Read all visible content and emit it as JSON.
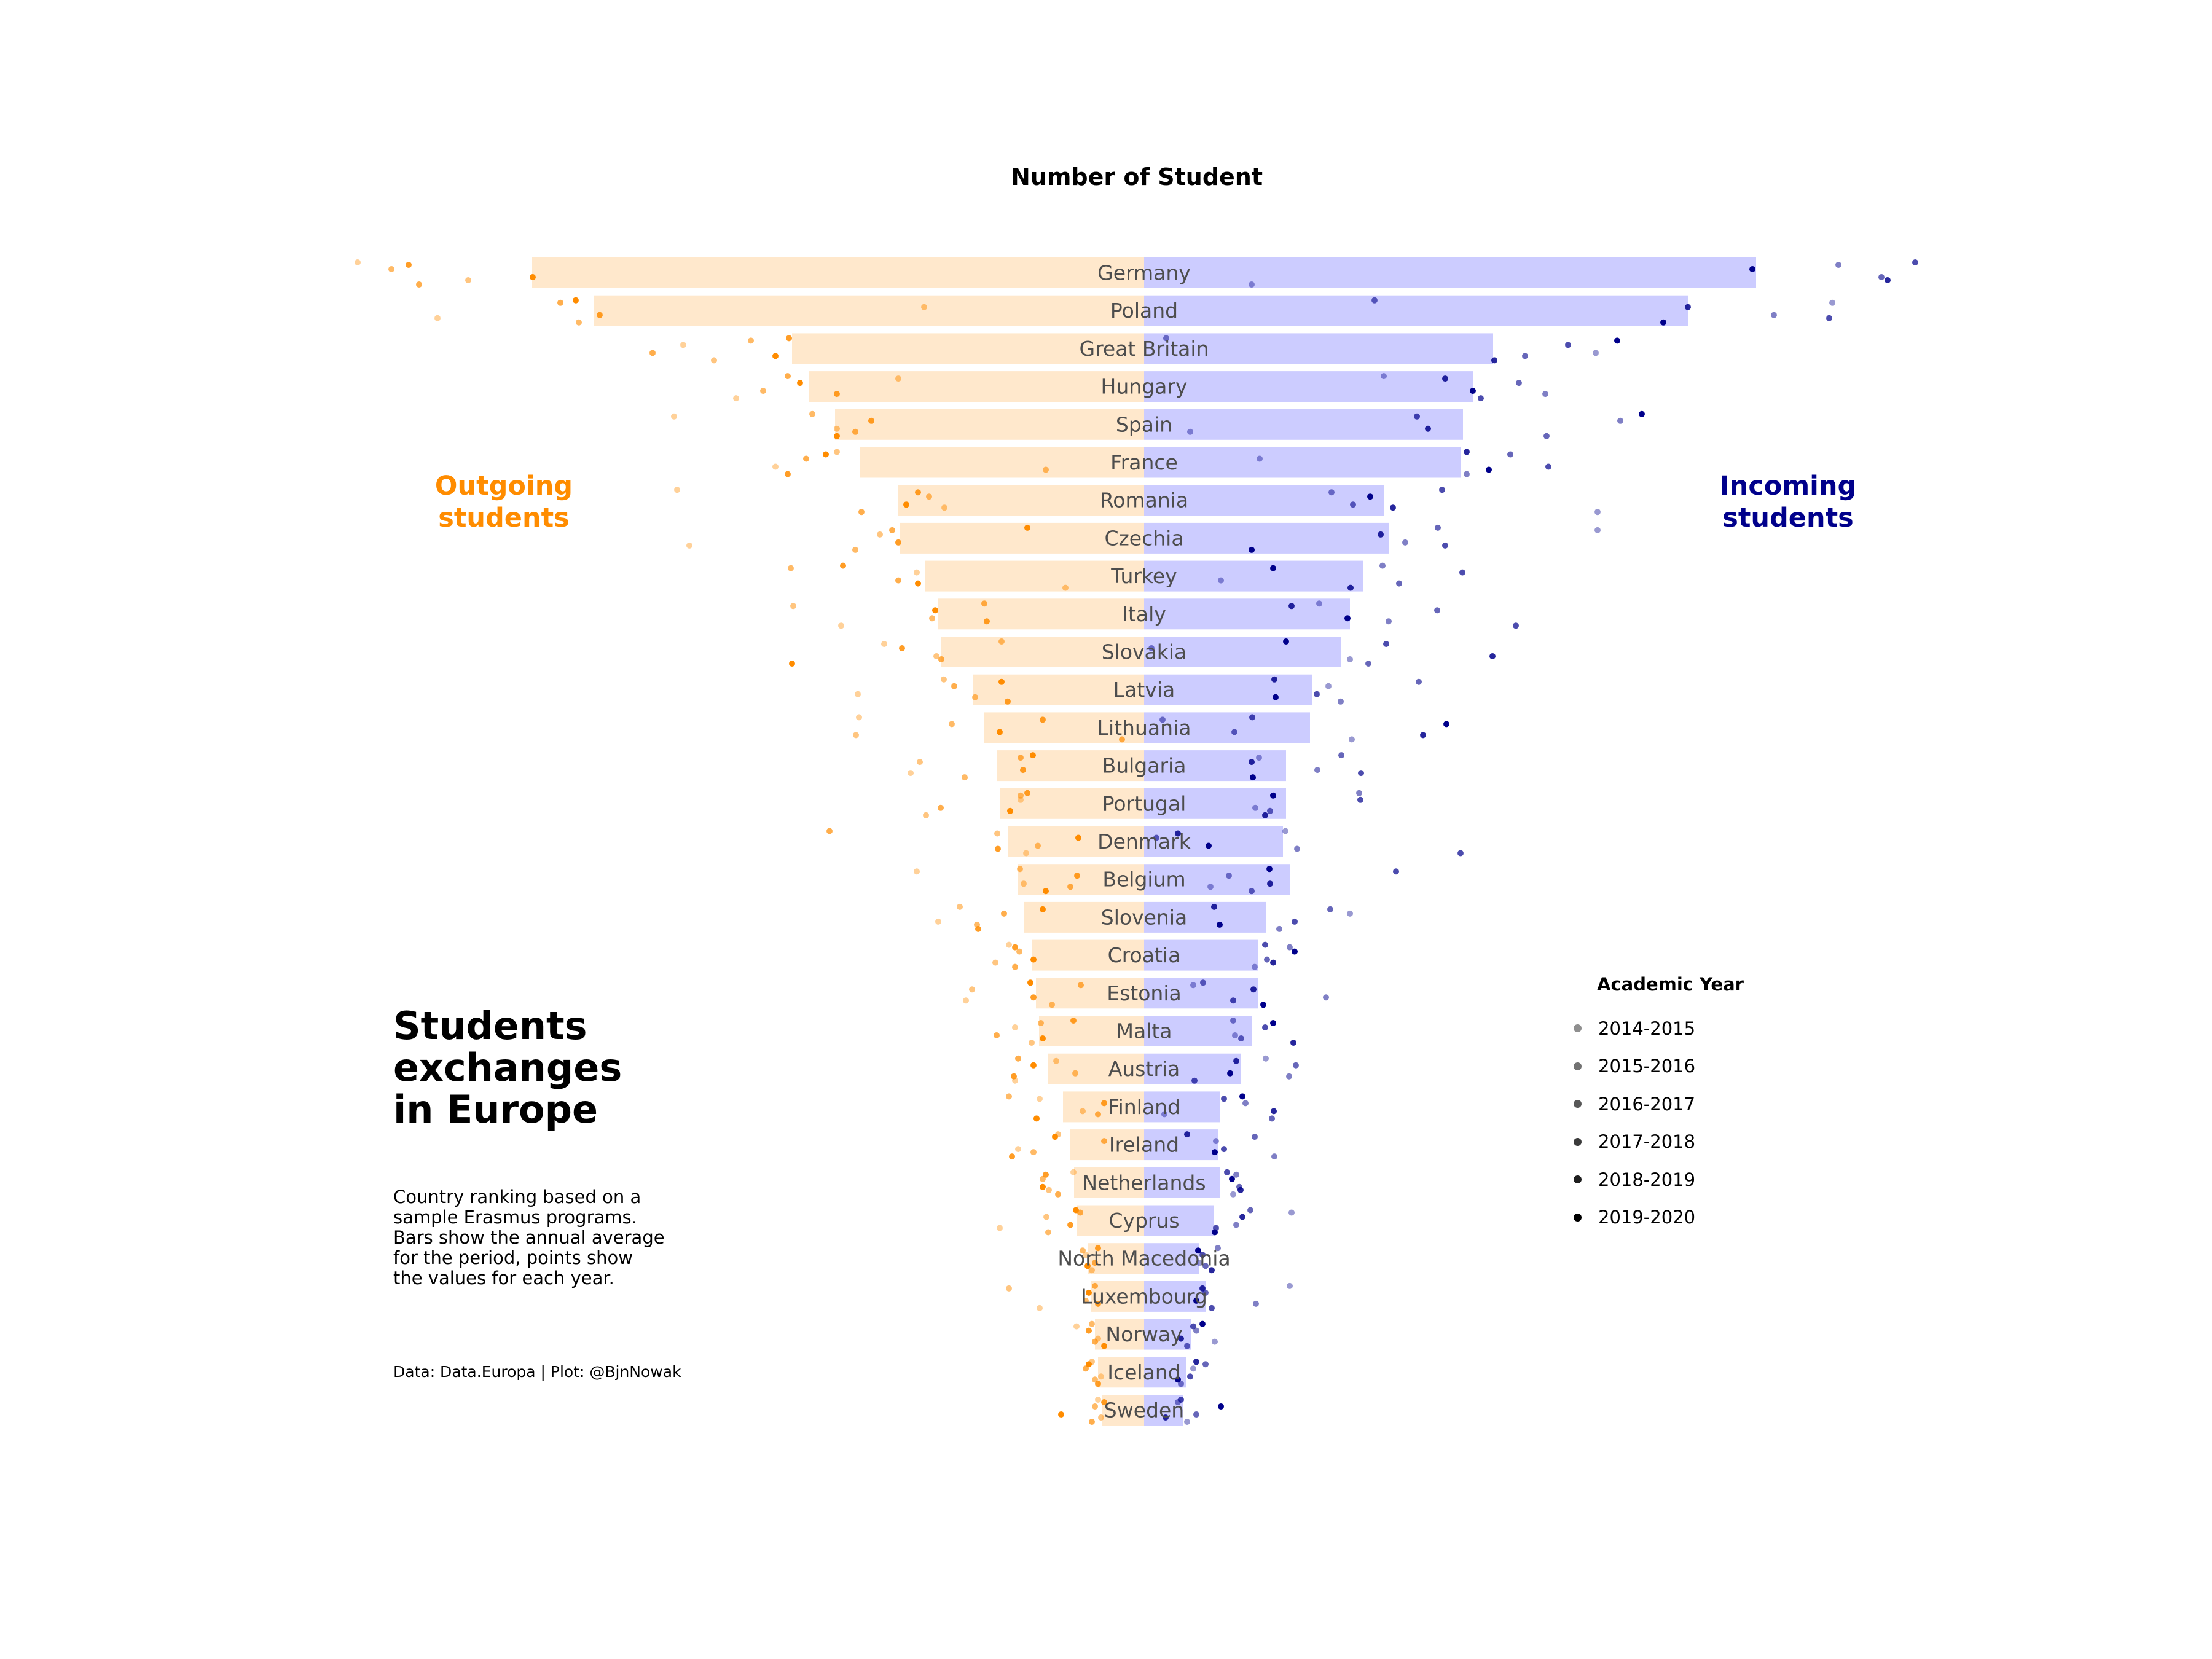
{
  "title": "Number of Student",
  "annotations": {
    "outgoing_label": "Outgoing\nstudents",
    "incoming_label": "Incoming\nstudents",
    "main_title": "Students\nexchanges\nin Europe",
    "subtitle": "Country ranking based on a\nsample Erasmus programs.\nBars show the annual average\nfor the period, points show\nthe values for each year.",
    "source": "Data: Data.Europa | Plot: @BjnNowak"
  },
  "colors": {
    "outgoing_bar": "#ffe8cc",
    "incoming_bar": "#ccccff",
    "outgoing_point": "#ff8c00",
    "incoming_point": "#00008b",
    "country_label": "#4d4d4d"
  },
  "legend": {
    "title": "Academic Year",
    "items": [
      "2014-2015",
      "2015-2016",
      "2016-2017",
      "2017-2018",
      "2018-2019",
      "2019-2020"
    ]
  },
  "chart_data": {
    "type": "bar",
    "orientation": "horizontal-diverging",
    "title": "Number of Student",
    "xlim": [
      -1000,
      1000
    ],
    "series_names": [
      "Outgoing students",
      "Incoming students"
    ],
    "years": [
      "2014-2015",
      "2015-2016",
      "2016-2017",
      "2017-2018",
      "2018-2019",
      "2019-2020"
    ],
    "countries": [
      {
        "name": "Germany",
        "outgoing": 996,
        "incoming": 996,
        "outgoing_years": [
          1280,
          1100,
          1225,
          1180,
          1197,
          995
        ],
        "incoming_years": [
          175,
          1130,
          1200,
          1255,
          1210,
          990
        ]
      },
      {
        "name": "Poland",
        "outgoing": 895,
        "incoming": 885,
        "outgoing_years": [
          1150,
          358,
          920,
          950,
          886,
          925
        ],
        "incoming_years": [
          1120,
          1025,
          375,
          1115,
          885,
          845
        ]
      },
      {
        "name": "Great Britain",
        "outgoing": 573,
        "incoming": 568,
        "outgoing_years": [
          750,
          700,
          640,
          800,
          578,
          600
        ],
        "incoming_years": [
          735,
          36,
          620,
          690,
          570,
          770
        ]
      },
      {
        "name": "Hungary",
        "outgoing": 545,
        "incoming": 535,
        "outgoing_years": [
          664,
          400,
          620,
          580,
          500,
          560
        ],
        "incoming_years": [
          390,
          653,
          610,
          548,
          490,
          535
        ]
      },
      {
        "name": "Spain",
        "outgoing": 503,
        "incoming": 519,
        "outgoing_years": [
          765,
          500,
          540,
          470,
          444,
          500
        ],
        "incoming_years": [
          75,
          775,
          655,
          444,
          462,
          810
        ]
      },
      {
        "name": "France",
        "outgoing": 463,
        "incoming": 515,
        "outgoing_years": [
          600,
          500,
          160,
          550,
          580,
          518
        ],
        "incoming_years": [
          188,
          525,
          596,
          658,
          525,
          561
        ]
      },
      {
        "name": "Romania",
        "outgoing": 400,
        "incoming": 391,
        "outgoing_years": [
          760,
          325,
          350,
          460,
          368,
          387
        ],
        "incoming_years": [
          738,
          305,
          340,
          485,
          405,
          368
        ]
      },
      {
        "name": "Czechia",
        "outgoing": 398,
        "incoming": 399,
        "outgoing_years": [
          740,
          430,
          470,
          410,
          400,
          190
        ],
        "incoming_years": [
          738,
          425,
          478,
          490,
          385,
          175
        ]
      },
      {
        "name": "Turkey",
        "outgoing": 357,
        "incoming": 356,
        "outgoing_years": [
          370,
          128,
          575,
          400,
          490,
          368
        ],
        "incoming_years": [
          125,
          388,
          415,
          518,
          336,
          210
        ]
      },
      {
        "name": "Italy",
        "outgoing": 336,
        "incoming": 335,
        "outgoing_years": [
          493,
          571,
          345,
          260,
          256,
          340
        ],
        "incoming_years": [
          285,
          398,
          477,
          605,
          240,
          331
        ]
      },
      {
        "name": "Slovakia",
        "outgoing": 330,
        "incoming": 321,
        "outgoing_years": [
          423,
          338,
          232,
          330,
          394,
          573
        ],
        "incoming_years": [
          335,
          12,
          365,
          394,
          567,
          231
        ]
      },
      {
        "name": "Latvia",
        "outgoing": 278,
        "incoming": 273,
        "outgoing_years": [
          466,
          326,
          275,
          309,
          222,
          232
        ],
        "incoming_years": [
          300,
          320,
          447,
          281,
          212,
          214
        ]
      },
      {
        "name": "Lithuania",
        "outgoing": 261,
        "incoming": 270,
        "outgoing_years": [
          464,
          469,
          313,
          36,
          165,
          235
        ],
        "incoming_years": [
          338,
          30,
          147,
          176,
          454,
          492
        ]
      },
      {
        "name": "Bulgaria",
        "outgoing": 240,
        "incoming": 231,
        "outgoing_years": [
          380,
          365,
          292,
          201,
          197,
          181
        ],
        "incoming_years": [
          187,
          282,
          321,
          353,
          175,
          177
        ]
      },
      {
        "name": "Portugal",
        "outgoing": 234,
        "incoming": 231,
        "outgoing_years": [
          201,
          355,
          201,
          331,
          190,
          218
        ],
        "incoming_years": [
          181,
          350,
          205,
          352,
          197,
          210
        ]
      },
      {
        "name": "Denmark",
        "outgoing": 221,
        "incoming": 226,
        "outgoing_years": [
          192,
          239,
          173,
          512,
          238,
          107
        ],
        "incoming_years": [
          230,
          249,
          20,
          515,
          55,
          105
        ]
      },
      {
        "name": "Belgium",
        "outgoing": 206,
        "incoming": 238,
        "outgoing_years": [
          370,
          196,
          202,
          120,
          109,
          160
        ],
        "incoming_years": [
          108,
          138,
          175,
          410,
          205,
          204
        ]
      },
      {
        "name": "Slovenia",
        "outgoing": 195,
        "incoming": 198,
        "outgoing_years": [
          335,
          300,
          272,
          228,
          270,
          165
        ],
        "incoming_years": [
          335,
          220,
          303,
          245,
          114,
          123
        ]
      },
      {
        "name": "Croatia",
        "outgoing": 182,
        "incoming": 185,
        "outgoing_years": [
          220,
          242,
          203,
          210,
          210,
          180
        ],
        "incoming_years": [
          180,
          237,
          200,
          197,
          210,
          245
        ]
      },
      {
        "name": "Estonia",
        "outgoing": 176,
        "incoming": 185,
        "outgoing_years": [
          290,
          280,
          150,
          103,
          180,
          185
        ],
        "incoming_years": [
          80,
          296,
          96,
          145,
          178,
          194
        ]
      },
      {
        "name": "Malta",
        "outgoing": 171,
        "incoming": 175,
        "outgoing_years": [
          210,
          183,
          168,
          240,
          115,
          165
        ],
        "incoming_years": [
          148,
          145,
          158,
          197,
          243,
          210
        ]
      },
      {
        "name": "Austria",
        "outgoing": 157,
        "incoming": 157,
        "outgoing_years": [
          210,
          143,
          112,
          205,
          212,
          180
        ],
        "incoming_years": [
          198,
          236,
          247,
          82,
          150,
          140
        ]
      },
      {
        "name": "Finland",
        "outgoing": 132,
        "incoming": 123,
        "outgoing_years": [
          170,
          100,
          220,
          75,
          65,
          175
        ],
        "incoming_years": [
          33,
          165,
          208,
          130,
          211,
          160
        ]
      },
      {
        "name": "Ireland",
        "outgoing": 121,
        "incoming": 121,
        "outgoing_years": [
          205,
          140,
          180,
          65,
          215,
          145
        ],
        "incoming_years": [
          117,
          212,
          180,
          130,
          70,
          115
        ]
      },
      {
        "name": "Netherlands",
        "outgoing": 114,
        "incoming": 123,
        "outgoing_years": [
          115,
          155,
          165,
          140,
          160,
          165
        ],
        "incoming_years": [
          145,
          150,
          155,
          135,
          157,
          143
        ]
      },
      {
        "name": "Cyprus",
        "outgoing": 110,
        "incoming": 114,
        "outgoing_years": [
          235,
          159,
          156,
          104,
          120,
          111
        ],
        "incoming_years": [
          240,
          150,
          173,
          117,
          160,
          115
        ]
      },
      {
        "name": "North Macedonia",
        "outgoing": 92,
        "incoming": 90,
        "outgoing_years": [
          95,
          85,
          100,
          80,
          75,
          92
        ],
        "incoming_years": [
          90,
          120,
          100,
          95,
          110,
          88
        ]
      },
      {
        "name": "Luxembourg",
        "outgoing": 87,
        "incoming": 100,
        "outgoing_years": [
          170,
          220,
          95,
          80,
          75,
          90
        ],
        "incoming_years": [
          237,
          182,
          100,
          110,
          95,
          85
        ]
      },
      {
        "name": "Norway",
        "outgoing": 80,
        "incoming": 76,
        "outgoing_years": [
          110,
          75,
          85,
          80,
          90,
          65
        ],
        "incoming_years": [
          115,
          85,
          70,
          80,
          60,
          95
        ]
      },
      {
        "name": "Iceland",
        "outgoing": 75,
        "incoming": 68,
        "outgoing_years": [
          70,
          85,
          80,
          95,
          75,
          90
        ],
        "incoming_years": [
          80,
          60,
          100,
          75,
          85,
          55
        ]
      },
      {
        "name": "Sweden",
        "outgoing": 68,
        "incoming": 63,
        "outgoing_years": [
          75,
          70,
          80,
          85,
          65,
          135
        ],
        "incoming_years": [
          70,
          55,
          85,
          60,
          35,
          125
        ]
      }
    ]
  }
}
